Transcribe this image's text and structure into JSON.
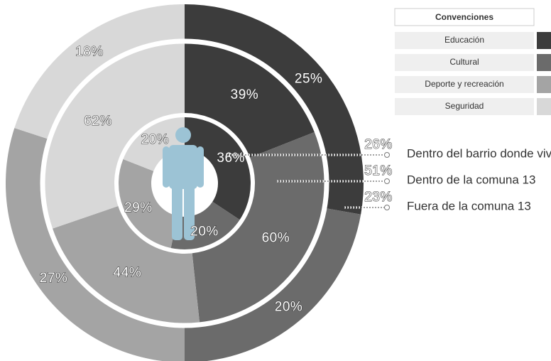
{
  "chart_data": {
    "type": "pie",
    "legend_title": "Convenciones",
    "categories": [
      "Educación",
      "Cultural",
      "Deporte y recreación",
      "Seguridad"
    ],
    "colors": [
      "#3c3c3c",
      "#6b6b6b",
      "#a4a4a4",
      "#d8d8d8"
    ],
    "series": [
      {
        "name": "Dentro del barrio donde vivo",
        "share": 26,
        "share_label": "26%",
        "values": [
          36,
          20,
          29,
          20
        ],
        "value_labels": [
          "36%",
          "20%",
          "29%",
          "20%"
        ]
      },
      {
        "name": "Dentro de la comuna 13",
        "share": 51,
        "share_label": "51%",
        "values": [
          39,
          60,
          44,
          62
        ],
        "value_labels": [
          "39%",
          "60%",
          "44%",
          "62%"
        ]
      },
      {
        "name": "Fuera de la comuna 13",
        "share": 23,
        "share_label": "23%",
        "values": [
          25,
          20,
          27,
          18
        ],
        "value_labels": [
          "25%",
          "20%",
          "27%",
          "18%"
        ]
      }
    ]
  }
}
